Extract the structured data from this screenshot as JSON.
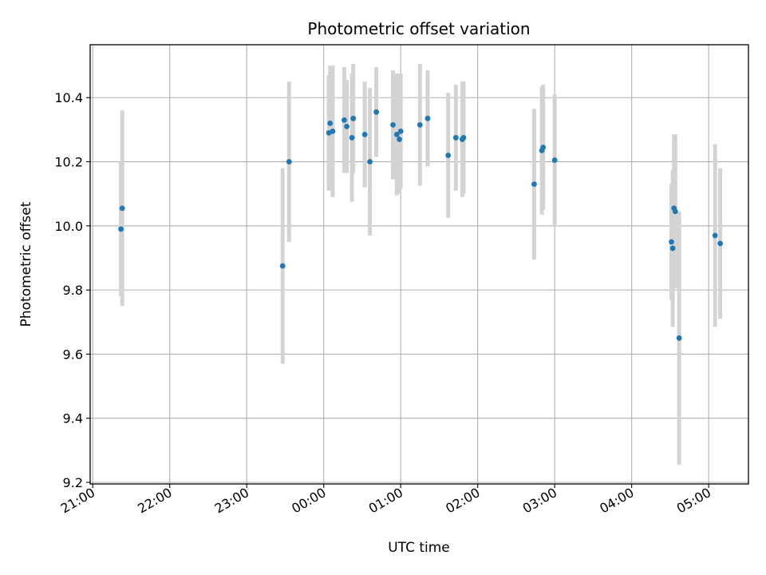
{
  "chart_data": {
    "type": "scatter",
    "title": "Photometric offset variation",
    "xlabel": "UTC time",
    "ylabel": "Photometric offset",
    "xlim": [
      "20:58",
      "05:31"
    ],
    "ylim": [
      9.195,
      10.565
    ],
    "grid": true,
    "x_ticks": [
      "21:00",
      "22:00",
      "23:00",
      "00:00",
      "01:00",
      "02:00",
      "03:00",
      "04:00",
      "05:00"
    ],
    "y_ticks": [
      "9.2",
      "9.4",
      "9.6",
      "9.8",
      "10.0",
      "10.2",
      "10.4"
    ],
    "marker_color": "#1f77b4",
    "errorbar_color": "#d3d3d3",
    "series": [
      {
        "points": [
          {
            "x": "21:22",
            "y": 9.99,
            "yerr": 0.21
          },
          {
            "x": "21:23",
            "y": 10.055,
            "yerr": 0.305
          },
          {
            "x": "23:28",
            "y": 9.875,
            "yerr": 0.305
          },
          {
            "x": "23:33",
            "y": 10.2,
            "yerr": 0.25
          },
          {
            "x": "00:04",
            "y": 10.29,
            "yerr": 0.18
          },
          {
            "x": "00:05",
            "y": 10.32,
            "yerr": 0.18
          },
          {
            "x": "00:07",
            "y": 10.295,
            "yerr": 0.205
          },
          {
            "x": "00:16",
            "y": 10.33,
            "yerr": 0.165
          },
          {
            "x": "00:18",
            "y": 10.31,
            "yerr": 0.145
          },
          {
            "x": "00:22",
            "y": 10.275,
            "yerr": 0.2
          },
          {
            "x": "00:23",
            "y": 10.335,
            "yerr": 0.17
          },
          {
            "x": "00:32",
            "y": 10.285,
            "yerr": 0.165
          },
          {
            "x": "00:36",
            "y": 10.2,
            "yerr": 0.23
          },
          {
            "x": "00:41",
            "y": 10.355,
            "yerr": 0.14
          },
          {
            "x": "00:54",
            "y": 10.315,
            "yerr": 0.17
          },
          {
            "x": "00:57",
            "y": 10.285,
            "yerr": 0.19
          },
          {
            "x": "00:59",
            "y": 10.27,
            "yerr": 0.17
          },
          {
            "x": "01:00",
            "y": 10.295,
            "yerr": 0.18
          },
          {
            "x": "01:15",
            "y": 10.315,
            "yerr": 0.19
          },
          {
            "x": "01:21",
            "y": 10.335,
            "yerr": 0.15
          },
          {
            "x": "01:37",
            "y": 10.22,
            "yerr": 0.195
          },
          {
            "x": "01:43",
            "y": 10.275,
            "yerr": 0.165
          },
          {
            "x": "01:48",
            "y": 10.27,
            "yerr": 0.18
          },
          {
            "x": "01:49",
            "y": 10.275,
            "yerr": 0.175
          },
          {
            "x": "02:44",
            "y": 10.13,
            "yerr": 0.235
          },
          {
            "x": "02:50",
            "y": 10.235,
            "yerr": 0.2
          },
          {
            "x": "02:51",
            "y": 10.245,
            "yerr": 0.195
          },
          {
            "x": "03:00",
            "y": 10.205,
            "yerr": 0.205
          },
          {
            "x": "04:31",
            "y": 9.95,
            "yerr": 0.18
          },
          {
            "x": "04:32",
            "y": 9.93,
            "yerr": 0.245
          },
          {
            "x": "04:33",
            "y": 10.055,
            "yerr": 0.23
          },
          {
            "x": "04:34",
            "y": 10.045,
            "yerr": 0.24
          },
          {
            "x": "04:37",
            "y": 9.65,
            "yerr": 0.395
          },
          {
            "x": "05:05",
            "y": 9.97,
            "yerr": 0.285
          },
          {
            "x": "05:09",
            "y": 9.945,
            "yerr": 0.235
          }
        ]
      }
    ]
  }
}
